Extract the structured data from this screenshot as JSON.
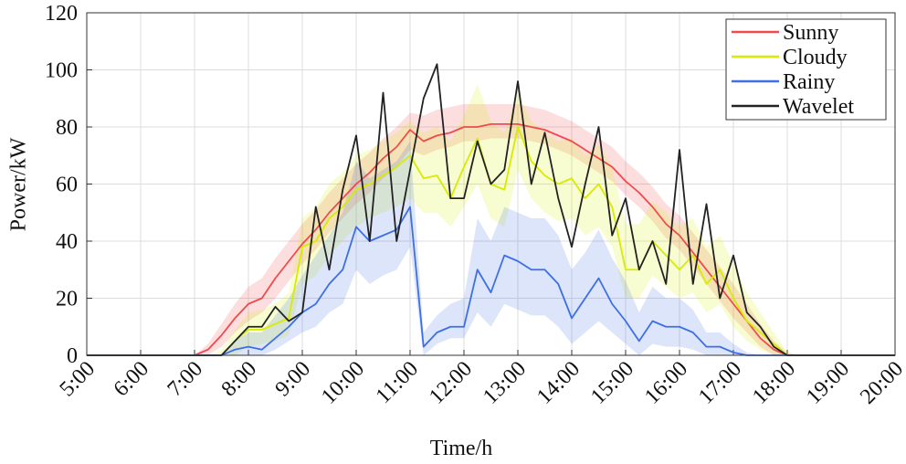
{
  "chart_data": {
    "type": "line",
    "xlabel": "Time/h",
    "ylabel": "Power/kW",
    "x": [
      5,
      5.25,
      5.5,
      5.75,
      6,
      6.25,
      6.5,
      6.75,
      7,
      7.25,
      7.5,
      7.75,
      8,
      8.25,
      8.5,
      8.75,
      9,
      9.25,
      9.5,
      9.75,
      10,
      10.25,
      10.5,
      10.75,
      11,
      11.25,
      11.5,
      11.75,
      12,
      12.25,
      12.5,
      12.75,
      13,
      13.25,
      13.5,
      13.75,
      14,
      14.25,
      14.5,
      14.75,
      15,
      15.25,
      15.5,
      15.75,
      16,
      16.25,
      16.5,
      16.75,
      17,
      17.25,
      17.5,
      17.75,
      18,
      18.25,
      18.5,
      18.75,
      19,
      19.25,
      19.5,
      19.75,
      20
    ],
    "xlim": [
      5,
      20
    ],
    "ylim": [
      0,
      120
    ],
    "xticks": [
      {
        "value": 5,
        "label": "5:00"
      },
      {
        "value": 6,
        "label": "6:00"
      },
      {
        "value": 7,
        "label": "7:00"
      },
      {
        "value": 8,
        "label": "8:00"
      },
      {
        "value": 9,
        "label": "9:00"
      },
      {
        "value": 10,
        "label": "10:00"
      },
      {
        "value": 11,
        "label": "11:00"
      },
      {
        "value": 12,
        "label": "12:00"
      },
      {
        "value": 13,
        "label": "13:00"
      },
      {
        "value": 14,
        "label": "14:00"
      },
      {
        "value": 15,
        "label": "15:00"
      },
      {
        "value": 16,
        "label": "16:00"
      },
      {
        "value": 17,
        "label": "17:00"
      },
      {
        "value": 18,
        "label": "18:00"
      },
      {
        "value": 19,
        "label": "19:00"
      },
      {
        "value": 20,
        "label": "20:00"
      }
    ],
    "yticks": [
      0,
      20,
      40,
      60,
      80,
      100,
      120
    ],
    "grid": true,
    "legend": "upper right",
    "series": [
      {
        "name": "Sunny",
        "color": "#f04a4c",
        "values": [
          0,
          0,
          0,
          0,
          0,
          0,
          0,
          0,
          0,
          2,
          7,
          13,
          18,
          20,
          27,
          33,
          39,
          44,
          50,
          55,
          60,
          64,
          69,
          73,
          79,
          75,
          77,
          78,
          80,
          80,
          81,
          81,
          81,
          80,
          79,
          77,
          75,
          72,
          69,
          66,
          61,
          57,
          52,
          46,
          42,
          36,
          30,
          24,
          18,
          12,
          6,
          2,
          0,
          0,
          0,
          0,
          0,
          0,
          0,
          0,
          0
        ],
        "lower": [
          0,
          0,
          0,
          0,
          0,
          0,
          0,
          0,
          0,
          0,
          3,
          8,
          12,
          15,
          20,
          26,
          32,
          37,
          43,
          48,
          53,
          57,
          62,
          66,
          72,
          70,
          72,
          73,
          75,
          75,
          76,
          76,
          76,
          75,
          74,
          72,
          70,
          67,
          64,
          61,
          56,
          52,
          47,
          41,
          37,
          31,
          25,
          19,
          13,
          8,
          3,
          0,
          0,
          0,
          0,
          0,
          0,
          0,
          0,
          0,
          0
        ],
        "upper": [
          0,
          0,
          0,
          0,
          0,
          0,
          0,
          0,
          0,
          4,
          11,
          18,
          24,
          27,
          34,
          40,
          46,
          51,
          57,
          62,
          67,
          71,
          76,
          80,
          85,
          84,
          86,
          87,
          88,
          88,
          88,
          88,
          88,
          87,
          86,
          84,
          82,
          79,
          76,
          73,
          68,
          64,
          59,
          53,
          49,
          43,
          37,
          31,
          25,
          18,
          11,
          5,
          1,
          0,
          0,
          0,
          0,
          0,
          0,
          0,
          0
        ]
      },
      {
        "name": "Cloudy",
        "color": "#d6ec00",
        "values": [
          0,
          0,
          0,
          0,
          0,
          0,
          0,
          0,
          0,
          0,
          0,
          5,
          9,
          9,
          11,
          13,
          38,
          40,
          48,
          52,
          58,
          60,
          63,
          66,
          70,
          62,
          63,
          55,
          66,
          76,
          60,
          58,
          80,
          68,
          63,
          60,
          62,
          55,
          60,
          52,
          30,
          30,
          40,
          35,
          30,
          35,
          25,
          30,
          20,
          12,
          8,
          4,
          0,
          0,
          0,
          0,
          0,
          0,
          0,
          0,
          0
        ],
        "lower": [
          0,
          0,
          0,
          0,
          0,
          0,
          0,
          0,
          0,
          0,
          0,
          0,
          3,
          4,
          5,
          7,
          25,
          28,
          35,
          40,
          45,
          48,
          50,
          52,
          55,
          50,
          50,
          45,
          52,
          60,
          48,
          45,
          65,
          55,
          50,
          47,
          48,
          42,
          45,
          38,
          20,
          20,
          28,
          24,
          20,
          22,
          15,
          18,
          10,
          5,
          2,
          0,
          0,
          0,
          0,
          0,
          0,
          0,
          0,
          0,
          0
        ],
        "upper": [
          0,
          0,
          0,
          0,
          0,
          0,
          0,
          0,
          0,
          0,
          2,
          9,
          15,
          16,
          18,
          22,
          48,
          52,
          60,
          64,
          70,
          72,
          75,
          78,
          82,
          78,
          80,
          75,
          84,
          95,
          82,
          78,
          92,
          82,
          78,
          75,
          76,
          70,
          74,
          66,
          46,
          46,
          54,
          50,
          45,
          48,
          38,
          42,
          32,
          22,
          15,
          8,
          1,
          0,
          0,
          0,
          0,
          0,
          0,
          0,
          0
        ]
      },
      {
        "name": "Rainy",
        "color": "#3d6fe6",
        "values": [
          0,
          0,
          0,
          0,
          0,
          0,
          0,
          0,
          0,
          0,
          0,
          2,
          3,
          2,
          6,
          10,
          15,
          18,
          25,
          30,
          45,
          40,
          42,
          44,
          52,
          3,
          8,
          10,
          10,
          30,
          22,
          35,
          33,
          30,
          30,
          25,
          13,
          20,
          27,
          18,
          12,
          5,
          12,
          10,
          10,
          8,
          3,
          3,
          1,
          0,
          0,
          0,
          0,
          0,
          0,
          0,
          0,
          0,
          0,
          0,
          0
        ],
        "lower": [
          0,
          0,
          0,
          0,
          0,
          0,
          0,
          0,
          0,
          0,
          0,
          0,
          0,
          0,
          2,
          5,
          8,
          10,
          15,
          18,
          30,
          25,
          28,
          30,
          38,
          0,
          4,
          6,
          6,
          15,
          10,
          18,
          16,
          14,
          14,
          10,
          4,
          8,
          12,
          8,
          4,
          0,
          4,
          3,
          3,
          2,
          0,
          0,
          0,
          0,
          0,
          0,
          0,
          0,
          0,
          0,
          0,
          0,
          0,
          0,
          0
        ],
        "upper": [
          0,
          0,
          0,
          0,
          0,
          0,
          0,
          0,
          0,
          0,
          0,
          5,
          8,
          8,
          14,
          20,
          28,
          35,
          42,
          50,
          68,
          62,
          65,
          68,
          75,
          8,
          14,
          18,
          20,
          48,
          40,
          52,
          50,
          48,
          48,
          42,
          30,
          36,
          44,
          34,
          26,
          15,
          24,
          20,
          20,
          16,
          8,
          8,
          4,
          1,
          0,
          0,
          0,
          0,
          0,
          0,
          0,
          0,
          0,
          0,
          0
        ]
      },
      {
        "name": "Wavelet",
        "color": "#222222",
        "values": [
          0,
          0,
          0,
          0,
          0,
          0,
          0,
          0,
          0,
          0,
          0,
          5,
          10,
          10,
          17,
          12,
          15,
          52,
          30,
          58,
          77,
          40,
          92,
          40,
          65,
          90,
          102,
          55,
          55,
          75,
          60,
          65,
          96,
          60,
          78,
          55,
          38,
          60,
          80,
          42,
          55,
          30,
          40,
          25,
          72,
          25,
          53,
          20,
          35,
          15,
          10,
          3,
          0,
          0,
          0,
          0,
          0,
          0,
          0,
          0,
          0
        ]
      }
    ]
  }
}
